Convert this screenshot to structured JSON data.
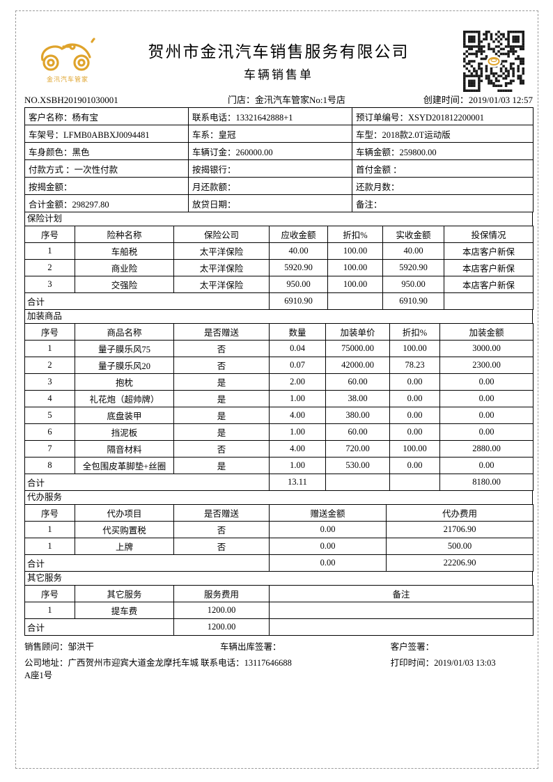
{
  "header": {
    "company_name": "贺州市金汛汽车销售服务有限公司",
    "doc_title": "车辆销售单",
    "logo_brand": "金汛汽车管家",
    "order_no": "NO.XSBH201901030001",
    "store": "门店：金汛汽车管家No:1号店",
    "created_time": "创建时间：2019/01/03 12:57"
  },
  "customer_info": {
    "rows": [
      [
        "客户名称：杨有宝",
        "联系电话：13321642888+1",
        "预订单编号：XSYD201812200001"
      ],
      [
        "车架号：LFMB0ABBXJ0094481",
        "车系：皇冠",
        "车型：2018款2.0T运动版"
      ],
      [
        "车身颜色：黑色",
        "车辆订金：260000.00",
        "车辆金额：259800.00"
      ],
      [
        "付款方式 ：一次性付款",
        "按揭银行：",
        "首付金额 ："
      ],
      [
        "按揭金额：",
        "月还款额：",
        "还款月数："
      ],
      [
        "合计金额：298297.80",
        "放贷日期：",
        "备注："
      ]
    ]
  },
  "insurance": {
    "section_label": "保险计划",
    "headers": [
      "序号",
      "险种名称",
      "保险公司",
      "应收金额",
      "折扣%",
      "实收金额",
      "投保情况"
    ],
    "rows": [
      [
        "1",
        "车船税",
        "太平洋保险",
        "40.00",
        "100.00",
        "40.00",
        "本店客户新保"
      ],
      [
        "2",
        "商业险",
        "太平洋保险",
        "5920.90",
        "100.00",
        "5920.90",
        "本店客户新保"
      ],
      [
        "3",
        "交强险",
        "太平洋保险",
        "950.00",
        "100.00",
        "950.00",
        "本店客户新保"
      ]
    ],
    "total_label": "合计",
    "total": [
      "6910.90",
      "",
      "6910.90",
      ""
    ]
  },
  "addons": {
    "section_label": "加装商品",
    "headers": [
      "序号",
      "商品名称",
      "是否赠送",
      "数量",
      "加装单价",
      "折扣%",
      "加装金额"
    ],
    "rows": [
      [
        "1",
        "量子膜乐风75",
        "否",
        "0.04",
        "75000.00",
        "100.00",
        "3000.00"
      ],
      [
        "2",
        "量子膜乐风20",
        "否",
        "0.07",
        "42000.00",
        "78.23",
        "2300.00"
      ],
      [
        "3",
        "抱枕",
        "是",
        "2.00",
        "60.00",
        "0.00",
        "0.00"
      ],
      [
        "4",
        "礼花炮（超帅牌）",
        "是",
        "1.00",
        "38.00",
        "0.00",
        "0.00"
      ],
      [
        "5",
        "底盘装甲",
        "是",
        "4.00",
        "380.00",
        "0.00",
        "0.00"
      ],
      [
        "6",
        "挡泥板",
        "是",
        "1.00",
        "60.00",
        "0.00",
        "0.00"
      ],
      [
        "7",
        "隔音材料",
        "否",
        "4.00",
        "720.00",
        "100.00",
        "2880.00"
      ],
      [
        "8",
        "全包围皮革脚垫+丝圈",
        "是",
        "1.00",
        "530.00",
        "0.00",
        "0.00"
      ]
    ],
    "total_label": "合计",
    "total": [
      "13.11",
      "",
      "",
      "8180.00"
    ]
  },
  "agency": {
    "section_label": "代办服务",
    "headers": [
      "序号",
      "代办项目",
      "是否赠送",
      "赠送金额",
      "代办费用"
    ],
    "rows": [
      [
        "1",
        "代买购置税",
        "否",
        "0.00",
        "21706.90"
      ],
      [
        "1",
        "上牌",
        "否",
        "0.00",
        "500.00"
      ]
    ],
    "total_label": "合计",
    "total": [
      "0.00",
      "22206.90"
    ]
  },
  "other": {
    "section_label": "其它服务",
    "headers": [
      "序号",
      "其它服务",
      "服务费用",
      "备注"
    ],
    "rows": [
      [
        "1",
        "提车费",
        "1200.00",
        ""
      ]
    ],
    "total_label": "合计",
    "total": [
      "1200.00",
      ""
    ]
  },
  "footer": {
    "sales_advisor": "销售顾问：邹洪干",
    "outbound_sign": "车辆出库签署：",
    "customer_sign": "客户签署：",
    "company_address": "公司地址：广西贺州市迎宾大道金龙摩托车城 联系电话：13117646688",
    "address_line2": "A座1号",
    "print_time": "打印时间：2019/01/03 13:03"
  },
  "colors": {
    "logo_gold": "#DFA32B",
    "qr_module": "#1a1a1a",
    "border": "#000000"
  }
}
